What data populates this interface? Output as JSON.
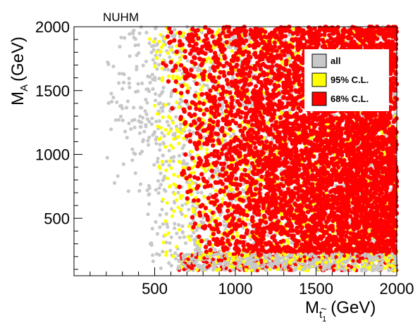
{
  "chart_data": {
    "type": "scatter",
    "title": "NUHM",
    "xlabel": {
      "main": "M",
      "sub": "t",
      "accent": "~",
      "subsub": "1",
      "unit": "(GeV)"
    },
    "ylabel": {
      "main": "M",
      "sub": "A",
      "unit": "(GeV)"
    },
    "xlim": [
      0,
      2000
    ],
    "ylim": [
      50,
      2000
    ],
    "xticks": [
      500,
      1000,
      1500,
      2000
    ],
    "yticks": [
      500,
      1000,
      1500,
      2000
    ],
    "grid": false,
    "legend_position": "top-right",
    "series": [
      {
        "name": "all",
        "color": "#c8c8c8",
        "region": {
          "x_min_at_ymax": 380,
          "x_min_at_ymin": 520,
          "y_min": 100
        }
      },
      {
        "name": "95% C.L.",
        "color": "#ffff00",
        "region": {
          "x_min_at_ymax": 480,
          "x_min_at_ymin": 600,
          "y_min": 170
        }
      },
      {
        "name": "68% C.L.",
        "color": "#ff0000",
        "region": {
          "x_min_at_ymax": 550,
          "x_min_at_ymin": 750,
          "y_min": 220
        }
      }
    ]
  }
}
